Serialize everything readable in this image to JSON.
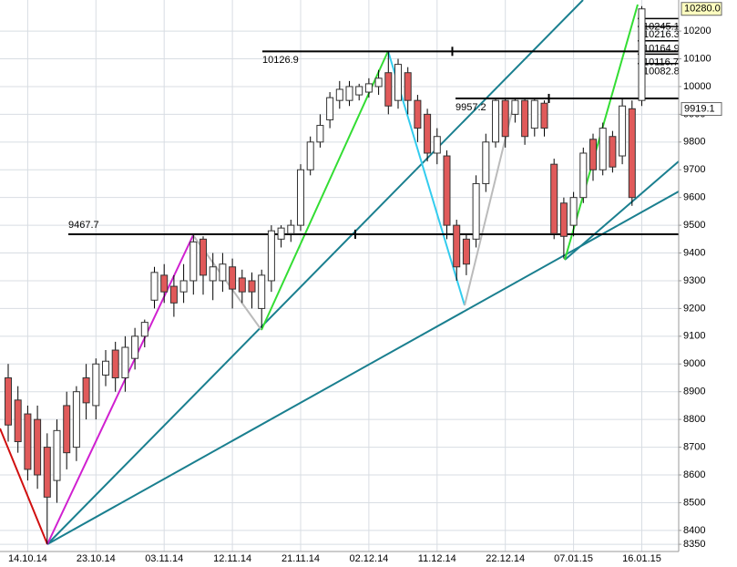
{
  "chart_data": {
    "type": "candlestick",
    "categories": [
      null,
      null,
      "14.10.14",
      null,
      null,
      null,
      null,
      null,
      null,
      "23.10.14",
      null,
      null,
      null,
      null,
      null,
      null,
      "03.11.14",
      null,
      null,
      null,
      null,
      null,
      null,
      "12.11.14",
      null,
      null,
      null,
      null,
      null,
      null,
      "21.11.14",
      null,
      null,
      null,
      null,
      null,
      null,
      "02.12.14",
      null,
      null,
      null,
      null,
      null,
      null,
      "11.12.14",
      null,
      null,
      null,
      null,
      null,
      null,
      "22.12.14",
      null,
      null,
      null,
      null,
      null,
      null,
      "07.01.15",
      null,
      null,
      null,
      null,
      null,
      null,
      "16.01.15"
    ],
    "open": [
      8950,
      8870,
      8820,
      8800,
      8700,
      8580,
      8850,
      8700,
      8950,
      8850,
      8960,
      9050,
      8950,
      9020,
      9100,
      9230,
      9320,
      9280,
      9260,
      9300,
      9450,
      9300,
      9300,
      9350,
      9310,
      9300,
      9200,
      9300,
      9450,
      9470,
      9500,
      9700,
      9800,
      9880,
      9950,
      9950,
      9970,
      9980,
      10000,
      10050,
      9950,
      10050,
      9950,
      9900,
      9760,
      9750,
      9500,
      9450,
      9450,
      9650,
      9800,
      9950,
      9900,
      9950,
      9850,
      9940,
      9720,
      9580,
      9500,
      9600,
      9810,
      9700,
      9820,
      9750,
      9920,
      9950
    ],
    "high": [
      9000,
      8920,
      8850,
      8850,
      8750,
      8800,
      8900,
      8920,
      9000,
      9020,
      9050,
      9080,
      9100,
      9130,
      9160,
      9350,
      9360,
      9320,
      9360,
      9470,
      9460,
      9400,
      9400,
      9380,
      9340,
      9330,
      9340,
      9500,
      9500,
      9520,
      9720,
      9820,
      9900,
      9980,
      10020,
      10020,
      10010,
      10030,
      10060,
      10127,
      10100,
      10070,
      9970,
      9920,
      9850,
      9770,
      9520,
      9470,
      9680,
      9830,
      9960,
      9960,
      9960,
      9960,
      9960,
      9950,
      9740,
      9600,
      9620,
      9780,
      9830,
      9870,
      9840,
      9960,
      9950,
      10290
    ],
    "low": [
      8720,
      8680,
      8580,
      8550,
      8350,
      8500,
      8620,
      8650,
      8800,
      8800,
      8920,
      8900,
      8900,
      8980,
      9060,
      9200,
      9220,
      9170,
      9220,
      9250,
      9250,
      9230,
      9260,
      9200,
      9220,
      9200,
      9130,
      9260,
      9420,
      9440,
      9480,
      9680,
      9780,
      9850,
      9920,
      9930,
      9950,
      9960,
      9970,
      9900,
      9920,
      9900,
      9800,
      9730,
      9720,
      9450,
      9300,
      9320,
      9420,
      9620,
      9780,
      9780,
      9870,
      9790,
      9820,
      9820,
      9450,
      9380,
      9460,
      9580,
      9660,
      9680,
      9690,
      9720,
      9570,
      9930
    ],
    "close": [
      8780,
      8720,
      8620,
      8600,
      8520,
      8760,
      8680,
      8900,
      8860,
      9000,
      9010,
      8950,
      9060,
      9100,
      9150,
      9330,
      9260,
      9220,
      9300,
      9440,
      9320,
      9350,
      9360,
      9270,
      9260,
      9260,
      9320,
      9480,
      9490,
      9500,
      9700,
      9800,
      9860,
      9960,
      9990,
      10000,
      10000,
      10010,
      10030,
      9930,
      10080,
      9950,
      9850,
      9760,
      9820,
      9500,
      9350,
      9360,
      9650,
      9800,
      9950,
      9820,
      9950,
      9820,
      9950,
      9850,
      9470,
      9460,
      9600,
      9760,
      9700,
      9850,
      9710,
      9930,
      9600,
      10280
    ],
    "up_color": "#ffffff",
    "down_color": "#e05a5a",
    "ylim": [
      8324,
      10312
    ],
    "yticks": [
      8350,
      8400,
      8500,
      8600,
      8700,
      8800,
      8900,
      9000,
      9100,
      9200,
      9300,
      9400,
      9500,
      9600,
      9700,
      9800,
      9900,
      10000,
      10100,
      10200
    ],
    "grid": true,
    "levels": [
      9467.7,
      10126.9,
      9957.2
    ],
    "price_labels": [
      {
        "value": 10280,
        "label": "10280.0"
      },
      10245.1,
      10216.3,
      10164.9,
      10116.7,
      10082.8,
      9919.1
    ]
  }
}
